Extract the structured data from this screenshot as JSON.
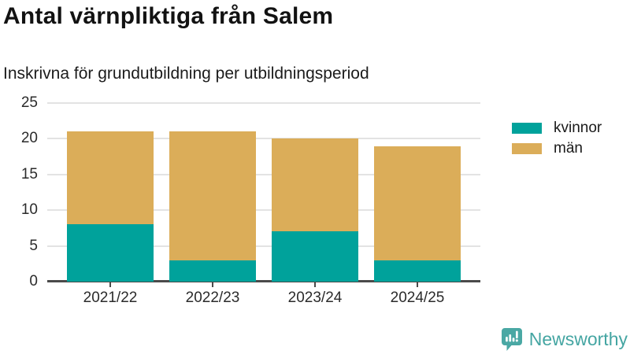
{
  "title": "Antal värnpliktiga från Salem",
  "subtitle": "Inskrivna för grundutbildning per utbildningsperiod",
  "legend": [
    {
      "label": "kvinnor",
      "color": "#00a29b"
    },
    {
      "label": "män",
      "color": "#dbad59"
    }
  ],
  "chart_data": {
    "type": "bar",
    "stacked": true,
    "title": "Antal värnpliktiga från Salem",
    "subtitle": "Inskrivna för grundutbildning per utbildningsperiod",
    "categories": [
      "2021/22",
      "2022/23",
      "2023/24",
      "2024/25"
    ],
    "series": [
      {
        "name": "kvinnor",
        "color": "#00a29b",
        "values": [
          8,
          3,
          7,
          3
        ]
      },
      {
        "name": "män",
        "color": "#dbad59",
        "values": [
          13,
          18,
          13,
          16
        ]
      }
    ],
    "totals": [
      21,
      21,
      20,
      19
    ],
    "xlabel": "",
    "ylabel": "",
    "ylim": [
      0,
      25
    ],
    "yticks": [
      0,
      5,
      10,
      15,
      20,
      25
    ],
    "grid": true,
    "legend_position": "right"
  },
  "colors": {
    "accent_teal": "#00a29b",
    "accent_gold": "#dbad59",
    "brand_teal": "#44a5a2",
    "grid": "#e3e3e3",
    "axis": "#4a4a4a"
  },
  "logo": {
    "text": "Newsworthy"
  }
}
